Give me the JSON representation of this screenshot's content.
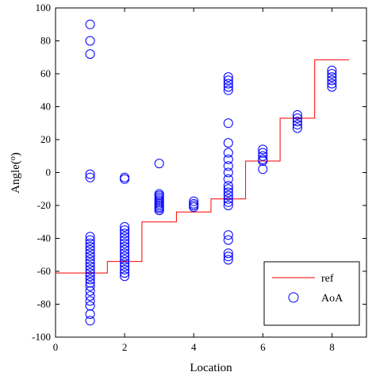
{
  "chart_data": {
    "type": "scatter",
    "xlabel": "Location",
    "ylabel": "Angle(",
    "ylabel_sup": "o",
    "ylabel_end": ")",
    "xlim": [
      0,
      9
    ],
    "ylim": [
      -100,
      100
    ],
    "xticks": [
      "0",
      "2",
      "4",
      "6",
      "8"
    ],
    "yticks": [
      "-100",
      "-80",
      "-60",
      "-40",
      "-20",
      "0",
      "20",
      "40",
      "60",
      "80",
      "100"
    ],
    "grid": false,
    "legend_position": "bottom-right",
    "colors": {
      "ref": "#ff0000",
      "aoa": "#0000ff",
      "axis": "#000000"
    },
    "series": [
      {
        "name": "ref",
        "style": "step-line",
        "points": [
          [
            0,
            -61
          ],
          [
            1.5,
            -61
          ],
          [
            1.5,
            -54
          ],
          [
            2.5,
            -54
          ],
          [
            2.5,
            -30
          ],
          [
            3.5,
            -30
          ],
          [
            3.5,
            -24
          ],
          [
            4.5,
            -24
          ],
          [
            4.5,
            -16
          ],
          [
            5.5,
            -16
          ],
          [
            5.5,
            7
          ],
          [
            6.5,
            7
          ],
          [
            6.5,
            33
          ],
          [
            7.5,
            33
          ],
          [
            7.5,
            68.5
          ],
          [
            8.5,
            68.5
          ]
        ]
      },
      {
        "name": "AoA",
        "style": "hollow-circle",
        "points": [
          [
            1,
            90
          ],
          [
            1,
            80
          ],
          [
            1,
            72
          ],
          [
            1,
            -1
          ],
          [
            1,
            -3
          ],
          [
            1,
            -39
          ],
          [
            1,
            -41
          ],
          [
            1,
            -43
          ],
          [
            1,
            -45
          ],
          [
            1,
            -47
          ],
          [
            1,
            -49
          ],
          [
            1,
            -51
          ],
          [
            1,
            -53
          ],
          [
            1,
            -55
          ],
          [
            1,
            -57
          ],
          [
            1,
            -59
          ],
          [
            1,
            -61
          ],
          [
            1,
            -63
          ],
          [
            1,
            -65
          ],
          [
            1,
            -67
          ],
          [
            1,
            -69
          ],
          [
            1,
            -72
          ],
          [
            1,
            -75
          ],
          [
            1,
            -78
          ],
          [
            1,
            -81
          ],
          [
            1,
            -86
          ],
          [
            1,
            -90
          ],
          [
            2,
            -3
          ],
          [
            2,
            -4
          ],
          [
            2,
            -33
          ],
          [
            2,
            -35
          ],
          [
            2,
            -37
          ],
          [
            2,
            -39
          ],
          [
            2,
            -41
          ],
          [
            2,
            -43
          ],
          [
            2,
            -45
          ],
          [
            2,
            -47
          ],
          [
            2,
            -49
          ],
          [
            2,
            -51
          ],
          [
            2,
            -53
          ],
          [
            2,
            -55
          ],
          [
            2,
            -57
          ],
          [
            2,
            -59
          ],
          [
            2,
            -61
          ],
          [
            2,
            -63
          ],
          [
            3,
            5.5
          ],
          [
            3,
            -13
          ],
          [
            3,
            -14
          ],
          [
            3,
            -15
          ],
          [
            3,
            -16
          ],
          [
            3,
            -17
          ],
          [
            3,
            -18
          ],
          [
            3,
            -19
          ],
          [
            3,
            -20
          ],
          [
            3,
            -21
          ],
          [
            3,
            -22
          ],
          [
            3,
            -23
          ],
          [
            4,
            -17.5
          ],
          [
            4,
            -19
          ],
          [
            4,
            -20
          ],
          [
            4,
            -21
          ],
          [
            5,
            58
          ],
          [
            5,
            56
          ],
          [
            5,
            54
          ],
          [
            5,
            52
          ],
          [
            5,
            50
          ],
          [
            5,
            30
          ],
          [
            5,
            18
          ],
          [
            5,
            12
          ],
          [
            5,
            8
          ],
          [
            5,
            4
          ],
          [
            5,
            0
          ],
          [
            5,
            -4
          ],
          [
            5,
            -8
          ],
          [
            5,
            -10
          ],
          [
            5,
            -12
          ],
          [
            5,
            -14
          ],
          [
            5,
            -16
          ],
          [
            5,
            -18
          ],
          [
            5,
            -20
          ],
          [
            5,
            -38
          ],
          [
            5,
            -41
          ],
          [
            5,
            -49
          ],
          [
            5,
            -51
          ],
          [
            5,
            -53
          ],
          [
            6,
            14
          ],
          [
            6,
            12
          ],
          [
            6,
            10
          ],
          [
            6,
            8
          ],
          [
            6,
            7
          ],
          [
            6,
            2
          ],
          [
            7,
            35
          ],
          [
            7,
            33
          ],
          [
            7,
            31
          ],
          [
            7,
            29
          ],
          [
            7,
            27
          ],
          [
            8,
            62
          ],
          [
            8,
            60
          ],
          [
            8,
            58
          ],
          [
            8,
            56
          ],
          [
            8,
            54
          ],
          [
            8,
            52
          ]
        ]
      }
    ]
  }
}
